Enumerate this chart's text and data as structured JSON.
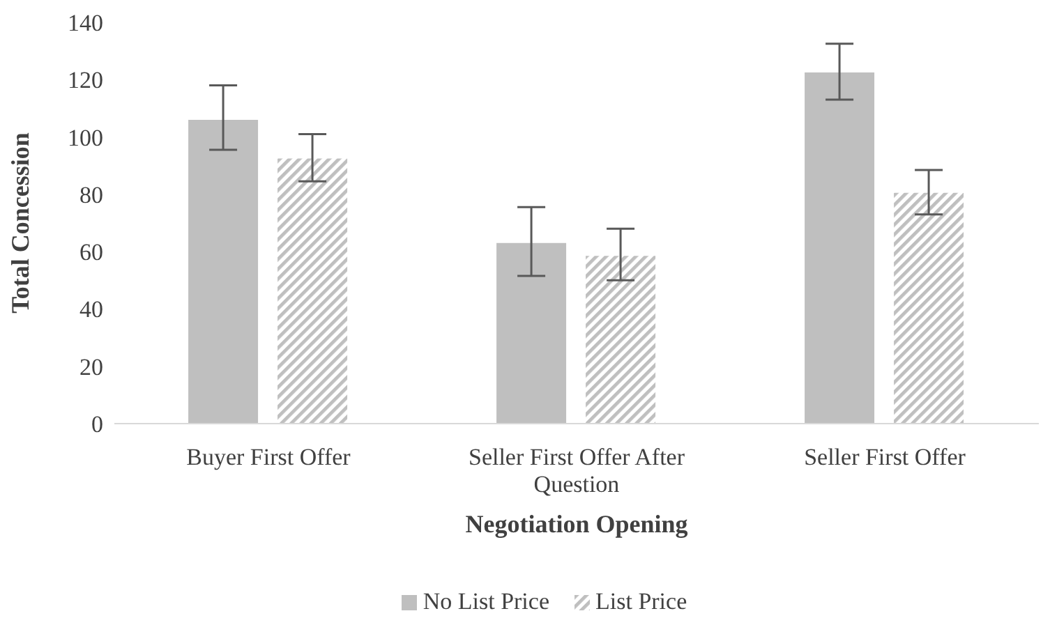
{
  "chart_data": {
    "type": "bar",
    "xlabel": "Negotiation Opening",
    "ylabel": "Total Concession",
    "categories": [
      "Buyer First Offer",
      "Seller First Offer After Question",
      "Seller First Offer"
    ],
    "series": [
      {
        "name": "No List Price",
        "color": "#bfbfbf",
        "values": [
          106,
          63,
          122.5
        ],
        "errors": [
          [
            95.5,
            118
          ],
          [
            51.5,
            75.5
          ],
          [
            113,
            132.5
          ]
        ]
      },
      {
        "name": "List Price",
        "color": "#bfbfbf",
        "values": [
          92.5,
          58.5,
          80.5
        ],
        "errors": [
          [
            84.5,
            101
          ],
          [
            50,
            68
          ],
          [
            73,
            88.5
          ]
        ]
      }
    ],
    "ylim": [
      0,
      140
    ],
    "yticks": [
      0,
      20,
      40,
      60,
      80,
      100,
      120,
      140
    ],
    "legend": "bottom"
  }
}
